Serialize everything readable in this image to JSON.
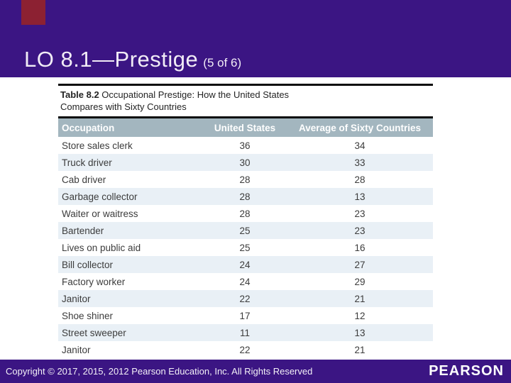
{
  "title": {
    "main": "LO 8.1—Prestige",
    "suffix": "(5 of 6)"
  },
  "colors": {
    "banner_purple": "#3B1583",
    "accent_red": "#8C2132",
    "table_header_bg": "#A3B6BF",
    "row_alt_blue": "#E9F0F6",
    "footer_purple": "#3B1583"
  },
  "table": {
    "caption": {
      "label": "Table 8.2",
      "line1_rest": " Occupational Prestige: How the United States",
      "line2": "Compares with Sixty Countries"
    },
    "headers": [
      "Occupation",
      "United States",
      "Average of Sixty Countries"
    ],
    "rows": [
      [
        "Store sales clerk",
        "36",
        "34"
      ],
      [
        "Truck driver",
        "30",
        "33"
      ],
      [
        "Cab driver",
        "28",
        "28"
      ],
      [
        "Garbage collector",
        "28",
        "13"
      ],
      [
        "Waiter or waitress",
        "28",
        "23"
      ],
      [
        "Bartender",
        "25",
        "23"
      ],
      [
        "Lives on public aid",
        "25",
        "16"
      ],
      [
        "Bill collector",
        "24",
        "27"
      ],
      [
        "Factory worker",
        "24",
        "29"
      ],
      [
        "Janitor",
        "22",
        "21"
      ],
      [
        "Shoe shiner",
        "17",
        "12"
      ],
      [
        "Street sweeper",
        "11",
        "13"
      ],
      [
        "Janitor",
        "22",
        "21"
      ]
    ]
  },
  "footer": {
    "copyright": "Copyright © 2017, 2015, 2012 Pearson Education, Inc. All Rights Reserved",
    "logo": "PEARSON"
  }
}
